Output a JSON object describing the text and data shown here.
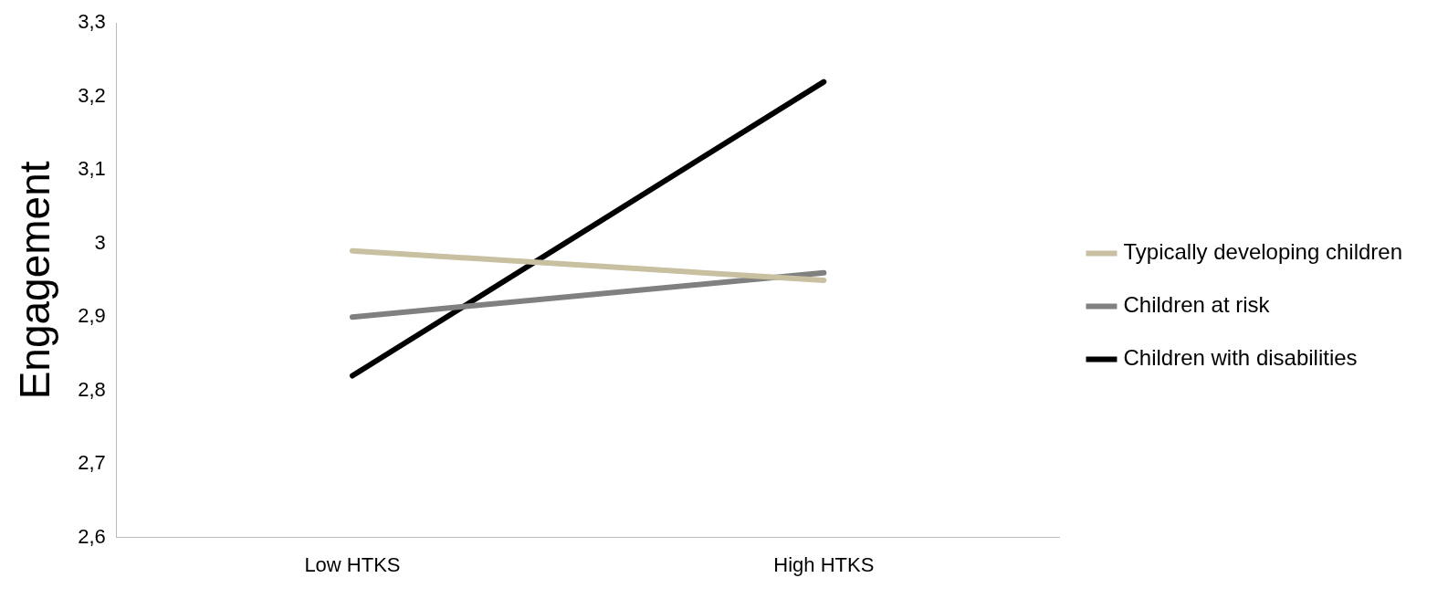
{
  "chart_data": {
    "type": "line",
    "ylabel": "Engagement",
    "categories": [
      "Low HTKS",
      "High HTKS"
    ],
    "series": [
      {
        "name": "Typically developing children",
        "color": "#c8c0a0",
        "values": [
          2.99,
          2.95
        ]
      },
      {
        "name": "Children at risk",
        "color": "#808080",
        "values": [
          2.9,
          2.96
        ]
      },
      {
        "name": "Children with disabilities",
        "color": "#000000",
        "values": [
          2.82,
          3.22
        ]
      }
    ],
    "ylim": [
      2.6,
      3.3
    ],
    "yticks": [
      {
        "value": 2.6,
        "label": "2,6"
      },
      {
        "value": 2.7,
        "label": "2,7"
      },
      {
        "value": 2.8,
        "label": "2,8"
      },
      {
        "value": 2.9,
        "label": "2,9"
      },
      3,
      {
        "value": 3.1,
        "label": "3,1"
      },
      {
        "value": 3.2,
        "label": "3,2"
      },
      {
        "value": 3.3,
        "label": "3,3"
      }
    ],
    "grid": false,
    "legend": "right",
    "marker": "none",
    "line_style": "solid"
  }
}
